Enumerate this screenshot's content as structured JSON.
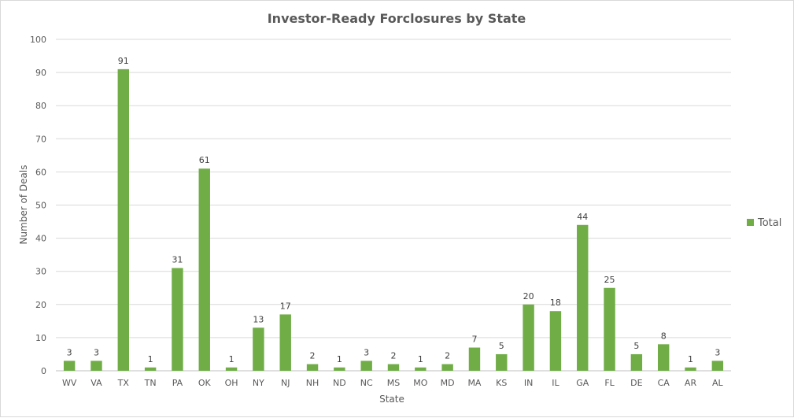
{
  "chart_data": {
    "type": "bar",
    "title": "Investor-Ready Forclosures by State",
    "xlabel": "State",
    "ylabel": "Number of Deals",
    "ylim": [
      0,
      100
    ],
    "yticks": [
      0,
      10,
      20,
      30,
      40,
      50,
      60,
      70,
      80,
      90,
      100
    ],
    "grid": true,
    "legend_position": "right",
    "categories": [
      "WV",
      "VA",
      "TX",
      "TN",
      "PA",
      "OK",
      "OH",
      "NY",
      "NJ",
      "NH",
      "ND",
      "NC",
      "MS",
      "MO",
      "MD",
      "MA",
      "KS",
      "IN",
      "IL",
      "GA",
      "FL",
      "DE",
      "CA",
      "AR",
      "AL"
    ],
    "series": [
      {
        "name": "Total",
        "color": "#70ad47",
        "values": [
          3,
          3,
          91,
          1,
          31,
          61,
          1,
          13,
          17,
          2,
          1,
          3,
          2,
          1,
          2,
          7,
          5,
          20,
          18,
          44,
          25,
          5,
          8,
          1,
          3
        ]
      }
    ]
  }
}
